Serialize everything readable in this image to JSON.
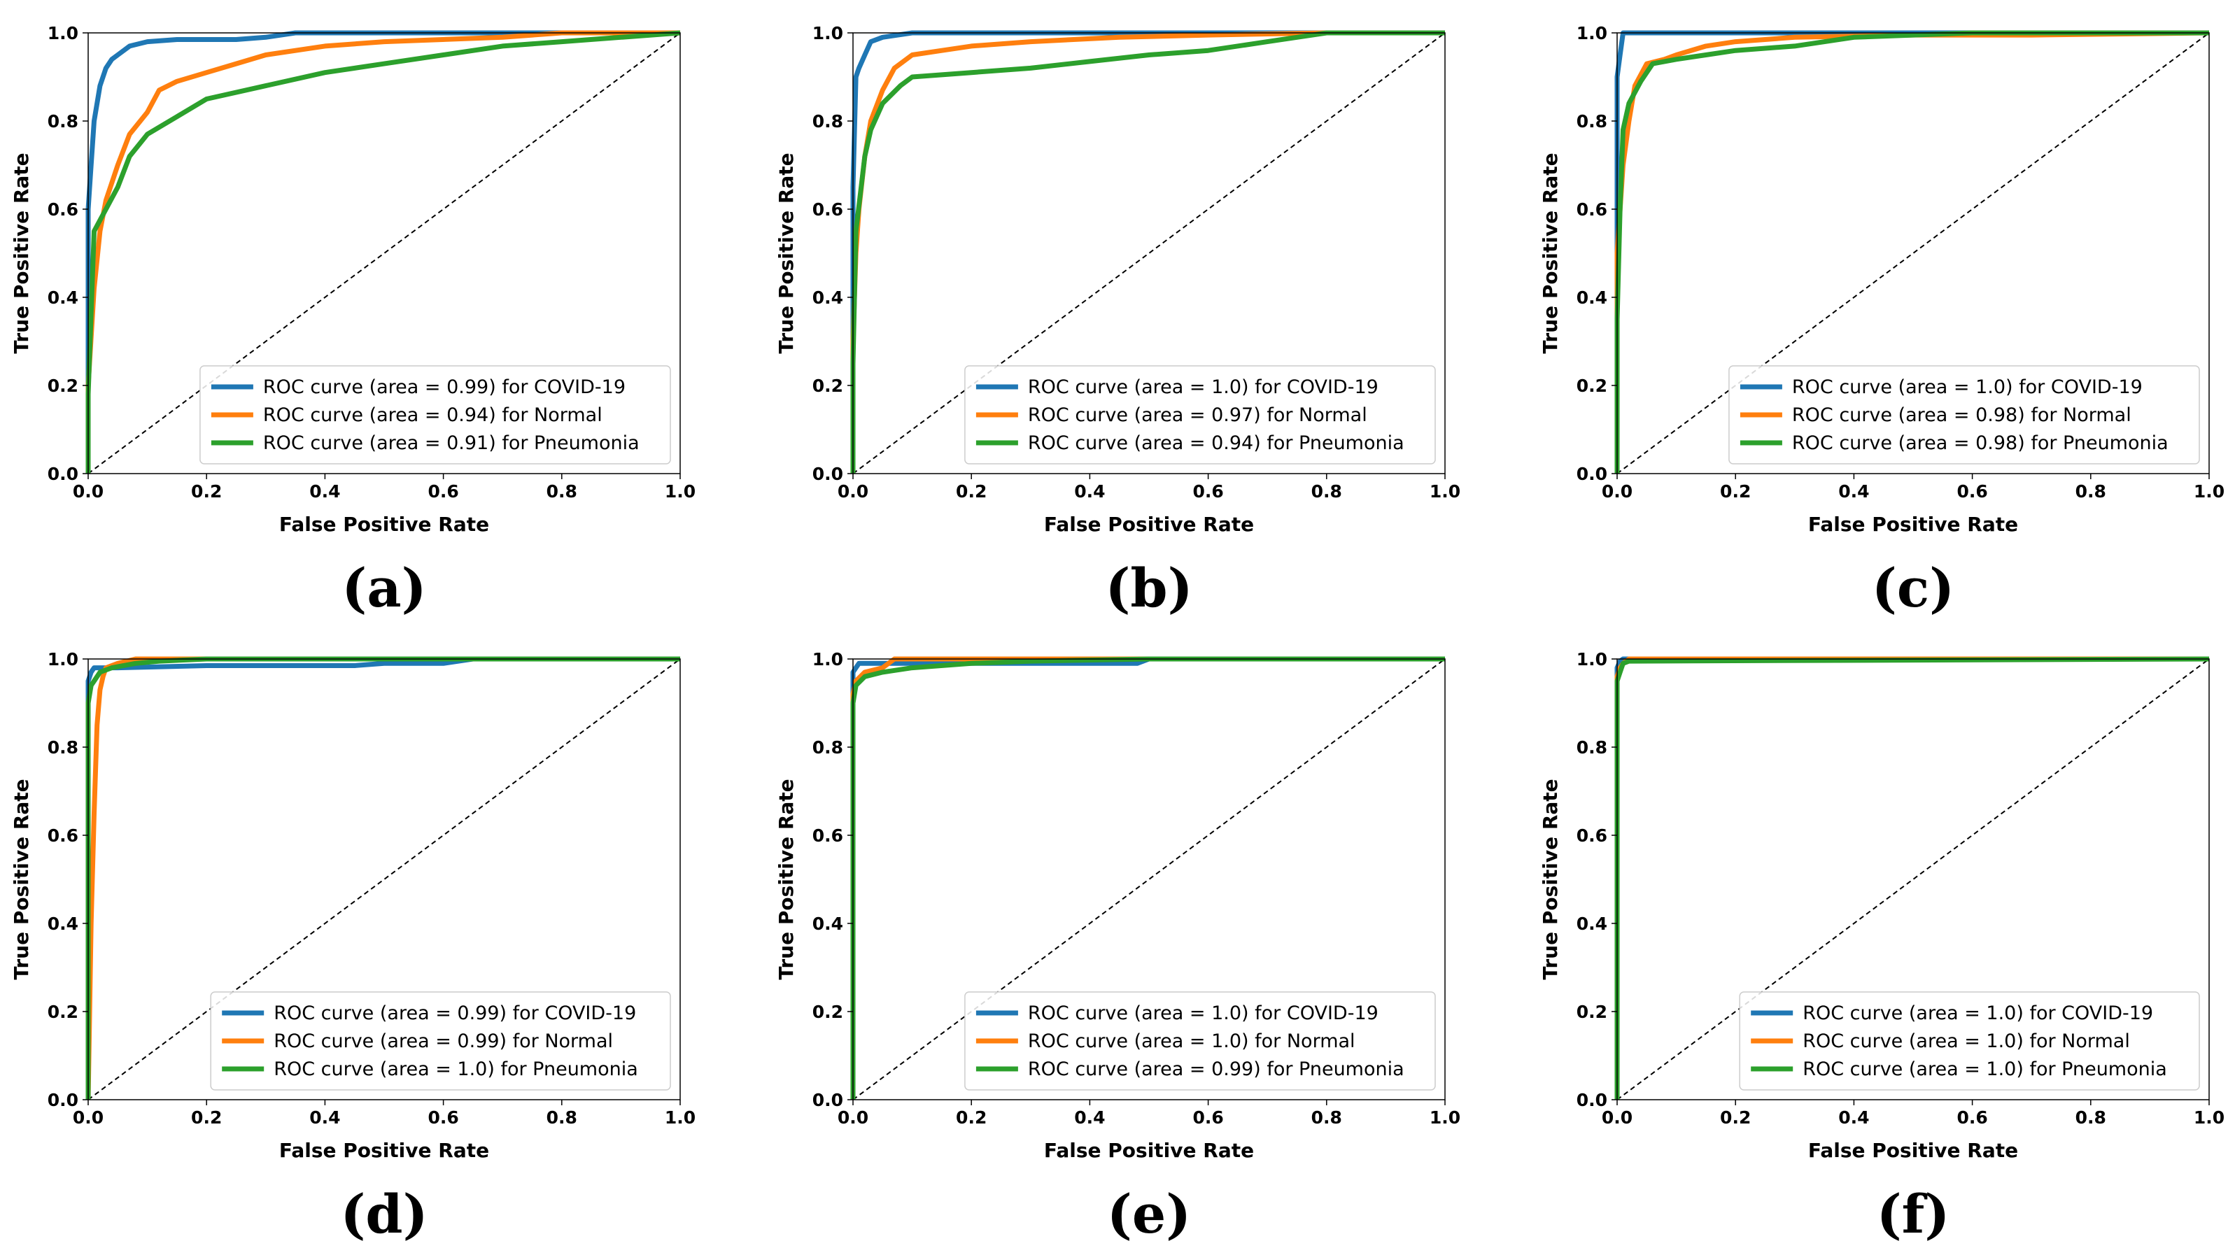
{
  "colors": {
    "COVID-19": "#1f77b4",
    "Normal": "#ff7f0e",
    "Pneumonia": "#2ca02c",
    "diagonal": "#000000",
    "frame": "#000000"
  },
  "chart_data": [
    {
      "type": "line",
      "panel_label": "(a)",
      "xlabel": "False Positive Rate",
      "ylabel": "True Positive Rate",
      "xlim": [
        0,
        1
      ],
      "ylim": [
        0,
        1
      ],
      "xticks": [
        "0.0",
        "0.2",
        "0.4",
        "0.6",
        "0.8",
        "1.0"
      ],
      "yticks": [
        "0.0",
        "0.2",
        "0.4",
        "0.6",
        "0.8",
        "1.0"
      ],
      "legend_position": "lower-right",
      "series": [
        {
          "name": "COVID-19",
          "legend": "ROC curve (area = 0.99) for COVID-19",
          "x": [
            0,
            0,
            0.005,
            0.01,
            0.02,
            0.03,
            0.04,
            0.05,
            0.07,
            0.1,
            0.15,
            0.25,
            0.3,
            0.35,
            0.5,
            0.9,
            1
          ],
          "y": [
            0,
            0.6,
            0.7,
            0.8,
            0.88,
            0.92,
            0.94,
            0.95,
            0.97,
            0.98,
            0.985,
            0.985,
            0.99,
            1.0,
            1.0,
            1.0,
            1.0
          ]
        },
        {
          "name": "Normal",
          "legend": "ROC curve (area = 0.94) for Normal",
          "x": [
            0,
            0,
            0.01,
            0.02,
            0.03,
            0.05,
            0.07,
            0.1,
            0.12,
            0.15,
            0.2,
            0.25,
            0.3,
            0.4,
            0.5,
            0.7,
            0.8,
            0.9,
            1
          ],
          "y": [
            0,
            0.2,
            0.42,
            0.55,
            0.62,
            0.7,
            0.77,
            0.82,
            0.87,
            0.89,
            0.91,
            0.93,
            0.95,
            0.97,
            0.98,
            0.99,
            1.0,
            1.0,
            1.0
          ]
        },
        {
          "name": "Pneumonia",
          "legend": "ROC curve (area = 0.91) for Pneumonia",
          "x": [
            0,
            0,
            0.01,
            0.03,
            0.05,
            0.07,
            0.1,
            0.15,
            0.2,
            0.3,
            0.4,
            0.5,
            0.6,
            0.7,
            0.8,
            0.9,
            1
          ],
          "y": [
            0,
            0.18,
            0.55,
            0.6,
            0.65,
            0.72,
            0.77,
            0.81,
            0.85,
            0.88,
            0.91,
            0.93,
            0.95,
            0.97,
            0.98,
            0.99,
            1.0
          ]
        }
      ]
    },
    {
      "type": "line",
      "panel_label": "(b)",
      "xlabel": "False Positive Rate",
      "ylabel": "True Positive Rate",
      "xlim": [
        0,
        1
      ],
      "ylim": [
        0,
        1
      ],
      "xticks": [
        "0.0",
        "0.2",
        "0.4",
        "0.6",
        "0.8",
        "1.0"
      ],
      "yticks": [
        "0.0",
        "0.2",
        "0.4",
        "0.6",
        "0.8",
        "1.0"
      ],
      "legend_position": "lower-right",
      "series": [
        {
          "name": "COVID-19",
          "legend": "ROC curve (area = 1.0) for COVID-19",
          "x": [
            0,
            0,
            0.005,
            0.01,
            0.02,
            0.03,
            0.05,
            0.1,
            0.15,
            0.3,
            1
          ],
          "y": [
            0,
            0.65,
            0.9,
            0.92,
            0.95,
            0.98,
            0.99,
            1.0,
            1.0,
            1.0,
            1.0
          ]
        },
        {
          "name": "Normal",
          "legend": "ROC curve (area = 0.97) for Normal",
          "x": [
            0,
            0,
            0.005,
            0.01,
            0.02,
            0.03,
            0.05,
            0.07,
            0.1,
            0.15,
            0.2,
            0.3,
            0.45,
            0.6,
            0.8,
            1
          ],
          "y": [
            0,
            0.3,
            0.5,
            0.6,
            0.72,
            0.8,
            0.87,
            0.92,
            0.95,
            0.96,
            0.97,
            0.98,
            0.99,
            0.995,
            1.0,
            1.0
          ]
        },
        {
          "name": "Pneumonia",
          "legend": "ROC curve (area = 0.94) for Pneumonia",
          "x": [
            0,
            0,
            0.005,
            0.02,
            0.03,
            0.05,
            0.08,
            0.1,
            0.15,
            0.2,
            0.3,
            0.4,
            0.5,
            0.6,
            0.7,
            0.75,
            0.8,
            1
          ],
          "y": [
            0,
            0.25,
            0.55,
            0.72,
            0.78,
            0.84,
            0.88,
            0.9,
            0.905,
            0.91,
            0.92,
            0.935,
            0.95,
            0.96,
            0.98,
            0.99,
            1.0,
            1.0
          ]
        }
      ]
    },
    {
      "type": "line",
      "panel_label": "(c)",
      "xlabel": "False Positive Rate",
      "ylabel": "True Positive Rate",
      "xlim": [
        0,
        1
      ],
      "ylim": [
        0,
        1
      ],
      "xticks": [
        "0.0",
        "0.2",
        "0.4",
        "0.6",
        "0.8",
        "1.0"
      ],
      "yticks": [
        "0.0",
        "0.2",
        "0.4",
        "0.6",
        "0.8",
        "1.0"
      ],
      "legend_position": "lower-right",
      "series": [
        {
          "name": "COVID-19",
          "legend": "ROC curve (area = 1.0) for COVID-19",
          "x": [
            0,
            0,
            0.005,
            0.01,
            0.02,
            0.05,
            1
          ],
          "y": [
            0,
            0.9,
            0.95,
            1.0,
            1.0,
            1.0,
            1.0
          ]
        },
        {
          "name": "Normal",
          "legend": "ROC curve (area = 0.98) for Normal",
          "x": [
            0,
            0,
            0.01,
            0.02,
            0.03,
            0.05,
            0.08,
            0.1,
            0.15,
            0.2,
            0.3,
            0.5,
            0.7,
            1
          ],
          "y": [
            0,
            0.5,
            0.7,
            0.8,
            0.88,
            0.93,
            0.94,
            0.95,
            0.97,
            0.98,
            0.99,
            0.995,
            0.995,
            1.0
          ]
        },
        {
          "name": "Pneumonia",
          "legend": "ROC curve (area = 0.98) for Pneumonia",
          "x": [
            0,
            0,
            0.005,
            0.01,
            0.02,
            0.04,
            0.06,
            0.1,
            0.15,
            0.2,
            0.3,
            0.4,
            0.6,
            1
          ],
          "y": [
            0,
            0.35,
            0.6,
            0.78,
            0.84,
            0.89,
            0.93,
            0.94,
            0.95,
            0.96,
            0.97,
            0.99,
            1.0,
            1.0
          ]
        }
      ]
    },
    {
      "type": "line",
      "panel_label": "(d)",
      "xlabel": "False Positive Rate",
      "ylabel": "True Positive Rate",
      "xlim": [
        0,
        1
      ],
      "ylim": [
        0,
        1
      ],
      "xticks": [
        "0.0",
        "0.2",
        "0.4",
        "0.6",
        "0.8",
        "1.0"
      ],
      "yticks": [
        "0.0",
        "0.2",
        "0.4",
        "0.6",
        "0.8",
        "1.0"
      ],
      "legend_position": "lower-right",
      "series": [
        {
          "name": "COVID-19",
          "legend": "ROC curve (area = 0.99) for COVID-19",
          "x": [
            0,
            0,
            0.005,
            0.01,
            0.05,
            0.2,
            0.45,
            0.5,
            0.6,
            0.65,
            1
          ],
          "y": [
            0,
            0.95,
            0.97,
            0.98,
            0.98,
            0.985,
            0.985,
            0.99,
            0.99,
            1.0,
            1.0
          ]
        },
        {
          "name": "Normal",
          "legend": "ROC curve (area = 0.99) for Normal",
          "x": [
            0,
            0.005,
            0.01,
            0.015,
            0.02,
            0.025,
            0.03,
            0.05,
            0.08,
            0.1,
            1
          ],
          "y": [
            0,
            0.4,
            0.65,
            0.85,
            0.93,
            0.96,
            0.98,
            0.99,
            1.0,
            1.0,
            1.0
          ]
        },
        {
          "name": "Pneumonia",
          "legend": "ROC curve (area = 1.0) for Pneumonia",
          "x": [
            0,
            0,
            0.005,
            0.01,
            0.02,
            0.04,
            0.08,
            0.12,
            0.2,
            1
          ],
          "y": [
            0,
            0.9,
            0.94,
            0.95,
            0.97,
            0.98,
            0.99,
            0.995,
            1.0,
            1.0
          ]
        }
      ]
    },
    {
      "type": "line",
      "panel_label": "(e)",
      "xlabel": "False Positive Rate",
      "ylabel": "True Positive Rate",
      "xlim": [
        0,
        1
      ],
      "ylim": [
        0,
        1
      ],
      "xticks": [
        "0.0",
        "0.2",
        "0.4",
        "0.6",
        "0.8",
        "1.0"
      ],
      "yticks": [
        "0.0",
        "0.2",
        "0.4",
        "0.6",
        "0.8",
        "1.0"
      ],
      "legend_position": "lower-right",
      "series": [
        {
          "name": "COVID-19",
          "legend": "ROC curve (area = 1.0) for COVID-19",
          "x": [
            0,
            0,
            0.005,
            0.01,
            0.05,
            0.3,
            0.48,
            0.5,
            1
          ],
          "y": [
            0,
            0.97,
            0.98,
            0.99,
            0.99,
            0.99,
            0.99,
            1.0,
            1.0
          ]
        },
        {
          "name": "Normal",
          "legend": "ROC curve (area = 1.0) for Normal",
          "x": [
            0,
            0,
            0.005,
            0.02,
            0.05,
            0.07,
            0.1,
            1
          ],
          "y": [
            0,
            0.92,
            0.95,
            0.97,
            0.98,
            1.0,
            1.0,
            1.0
          ]
        },
        {
          "name": "Pneumonia",
          "legend": "ROC curve (area = 0.99) for Pneumonia",
          "x": [
            0,
            0,
            0.005,
            0.02,
            0.05,
            0.1,
            0.2,
            0.3,
            0.5,
            1
          ],
          "y": [
            0,
            0.9,
            0.94,
            0.96,
            0.97,
            0.98,
            0.99,
            0.995,
            1.0,
            1.0
          ]
        }
      ]
    },
    {
      "type": "line",
      "panel_label": "(f)",
      "xlabel": "False Positive Rate",
      "ylabel": "True Positive Rate",
      "xlim": [
        0,
        1
      ],
      "ylim": [
        0,
        1
      ],
      "xticks": [
        "0.0",
        "0.2",
        "0.4",
        "0.6",
        "0.8",
        "1.0"
      ],
      "yticks": [
        "0.0",
        "0.2",
        "0.4",
        "0.6",
        "0.8",
        "1.0"
      ],
      "legend_position": "lower-right",
      "series": [
        {
          "name": "COVID-19",
          "legend": "ROC curve (area = 1.0) for COVID-19",
          "x": [
            0,
            0,
            0.005,
            0.01,
            1
          ],
          "y": [
            0,
            0.98,
            0.995,
            1.0,
            1.0
          ]
        },
        {
          "name": "Normal",
          "legend": "ROC curve (area = 1.0) for Normal",
          "x": [
            0,
            0,
            0.005,
            0.01,
            0.02,
            1
          ],
          "y": [
            0,
            0.96,
            0.98,
            0.99,
            1.0,
            1.0
          ]
        },
        {
          "name": "Pneumonia",
          "legend": "ROC curve (area = 1.0) for Pneumonia",
          "x": [
            0,
            0,
            0.005,
            0.01,
            0.02,
            1
          ],
          "y": [
            0,
            0.95,
            0.97,
            0.99,
            0.995,
            1.0
          ]
        }
      ]
    }
  ]
}
